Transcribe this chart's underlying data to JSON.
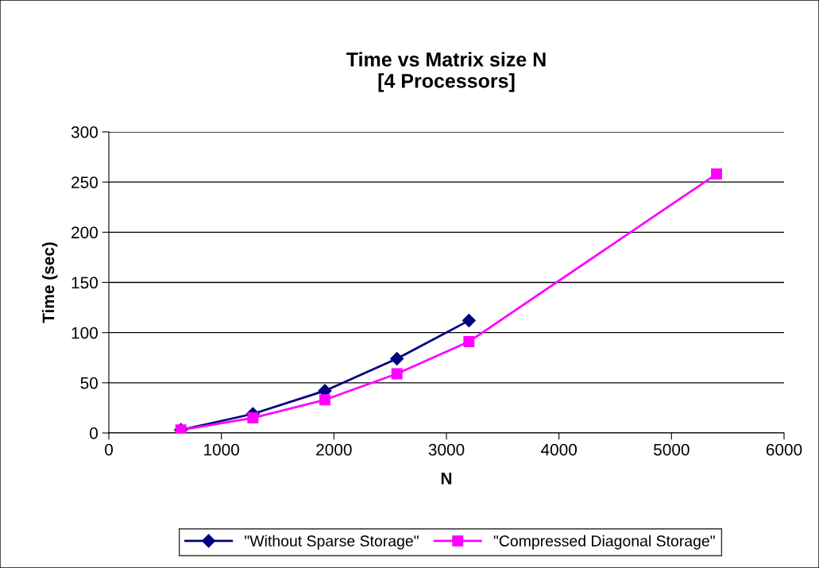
{
  "chart_data": {
    "type": "line",
    "title": "Time vs Matrix size N\n[4 Processors]",
    "xlabel": "N",
    "ylabel": "Time (sec)",
    "xlim": [
      0,
      6000
    ],
    "xticks": [
      0,
      1000,
      2000,
      3000,
      4000,
      5000,
      6000
    ],
    "ylim": [
      0,
      300
    ],
    "yticks": [
      0,
      50,
      100,
      150,
      200,
      250,
      300
    ],
    "grid": "y",
    "legend": "bottom",
    "series": [
      {
        "name": "\"Without Sparse Storage\"",
        "color": "#000080",
        "marker": "diamond",
        "x": [
          640,
          1280,
          1920,
          2560,
          3200
        ],
        "values": [
          3,
          19,
          42,
          74,
          112
        ]
      },
      {
        "name": "\"Compressed Diagonal Storage\"",
        "color": "#ff00ff",
        "marker": "square",
        "x": [
          640,
          1280,
          1920,
          2560,
          3200,
          5400
        ],
        "values": [
          3,
          15,
          33,
          59,
          91,
          258
        ]
      }
    ]
  }
}
